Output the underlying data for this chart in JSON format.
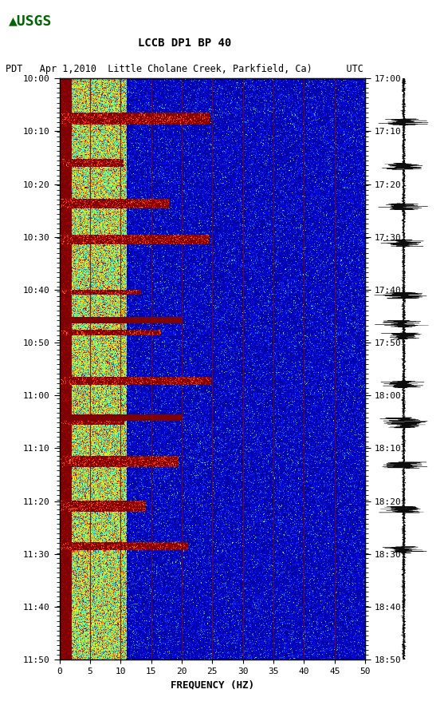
{
  "title_line1": "LCCB DP1 BP 40",
  "title_line2": "PDT   Apr 1,2010  Little Cholane Creek, Parkfield, Ca)      UTC",
  "xlabel": "FREQUENCY (HZ)",
  "left_yticks": [
    "10:00",
    "10:10",
    "10:20",
    "10:30",
    "10:40",
    "10:50",
    "11:00",
    "11:10",
    "11:20",
    "11:30",
    "11:40",
    "11:50"
  ],
  "right_yticks": [
    "17:00",
    "17:10",
    "17:20",
    "17:30",
    "17:40",
    "17:50",
    "18:00",
    "18:10",
    "18:20",
    "18:30",
    "18:40",
    "18:50"
  ],
  "freq_min": 0,
  "freq_max": 50,
  "freq_ticks": [
    0,
    5,
    10,
    15,
    20,
    25,
    30,
    35,
    40,
    45,
    50
  ],
  "n_time": 720,
  "n_freq": 500,
  "background_color": "#ffffff",
  "spectrogram_bg_color": "#00008B",
  "vert_line_positions": [
    5,
    10,
    15,
    20,
    25,
    30,
    35,
    40,
    45
  ],
  "colormap": "jet"
}
